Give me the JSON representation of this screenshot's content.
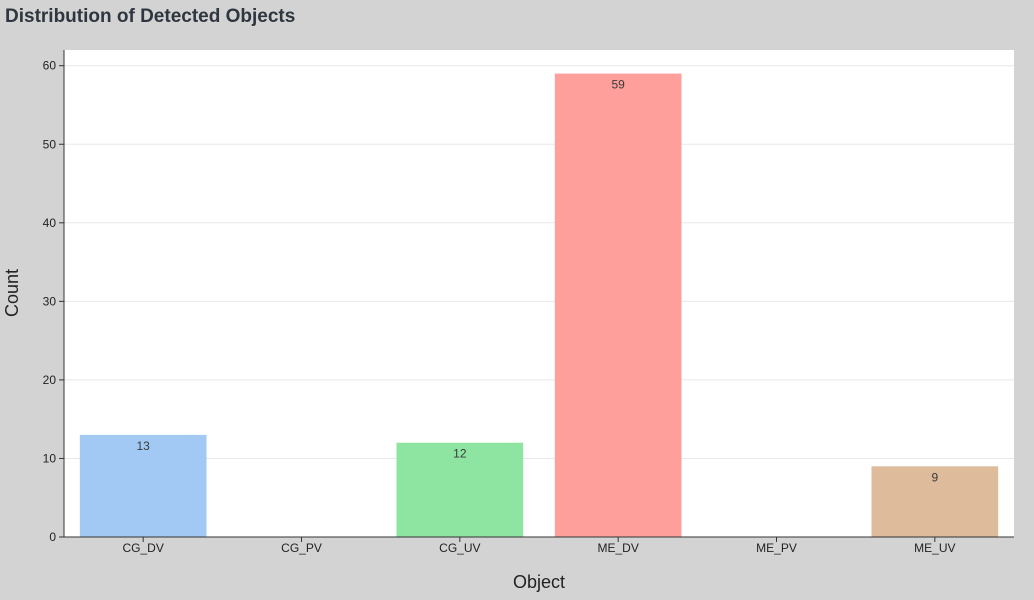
{
  "chart_data": {
    "type": "bar",
    "title": "Distribution of Detected Objects",
    "xlabel": "Object",
    "ylabel": "Count",
    "categories": [
      "CG_DV",
      "CG_PV",
      "CG_UV",
      "ME_DV",
      "ME_PV",
      "ME_UV"
    ],
    "values": [
      13,
      0,
      12,
      59,
      0,
      9
    ],
    "data_labels": [
      "13",
      "",
      "12",
      "59",
      "",
      "9"
    ],
    "colors": [
      "#a1c9f4",
      "#8de5a1",
      "#8de5a1",
      "#ff9f9b",
      "#ff9f9b",
      "#debb9b"
    ],
    "ylim": [
      0,
      62
    ],
    "yticks": [
      0,
      10,
      20,
      30,
      40,
      50,
      60
    ],
    "grid": true,
    "legend": "none"
  }
}
